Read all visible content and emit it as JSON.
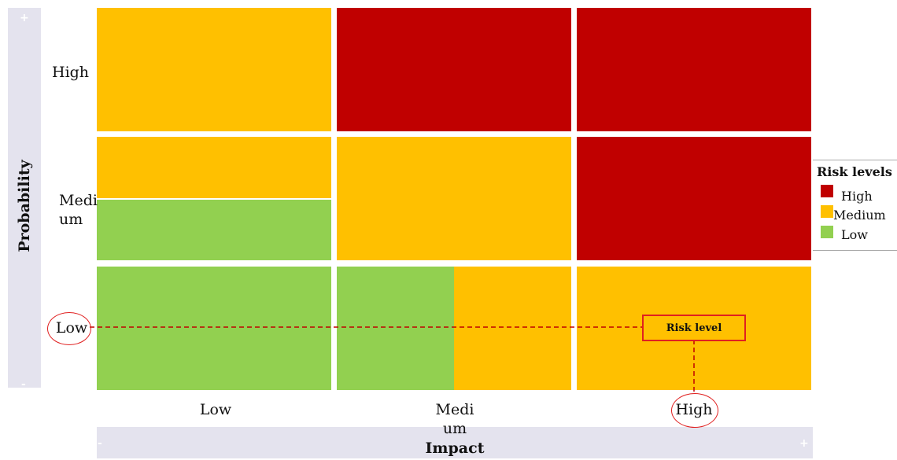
{
  "axes": {
    "y_title": "Probability",
    "x_title": "Impact",
    "y_plus": "+",
    "y_minus": "-",
    "x_minus": "-",
    "x_plus": "+",
    "y_ticks": [
      "High",
      "Medium",
      "Low"
    ],
    "x_ticks": [
      "Low",
      "Medium",
      "High"
    ]
  },
  "legend": {
    "title": "Risk levels",
    "items": [
      {
        "label": "High",
        "color": "#c00000"
      },
      {
        "label": "Medium",
        "color": "#ffc000"
      },
      {
        "label": "Low",
        "color": "#92d050"
      }
    ]
  },
  "annotation": {
    "label": "Risk level",
    "probability": "Low",
    "impact": "High"
  },
  "matrix": {
    "rows": [
      "High",
      "Medium",
      "Low"
    ],
    "columns": [
      "Low",
      "Medium",
      "High"
    ],
    "cells": [
      [
        [
          "Medium"
        ],
        [
          "High"
        ],
        [
          "High"
        ]
      ],
      [
        [
          "Medium",
          "Low"
        ],
        [
          "Medium"
        ],
        [
          "High"
        ]
      ],
      [
        [
          "Low"
        ],
        [
          "Low",
          "Medium"
        ],
        [
          "Medium"
        ]
      ]
    ]
  }
}
